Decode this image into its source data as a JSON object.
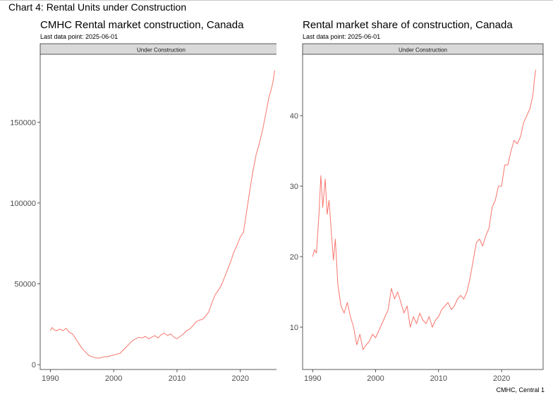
{
  "figure_title": "Chart 4: Rental Units under Construction",
  "credit": "CMHC, Central 1",
  "chart_data": [
    {
      "type": "line",
      "title": "CMHC Rental market construction, Canada",
      "subtitle": "Last data point: 2025-06-01",
      "facet_label": "Under Construction",
      "xlabel": "",
      "ylabel": "",
      "xlim": [
        1988.4,
        2026.6
      ],
      "ylim": [
        -3000,
        192000
      ],
      "xticks": [
        1990,
        2000,
        2010,
        2020
      ],
      "yticks": [
        0,
        50000,
        100000,
        150000
      ],
      "yticklabels": [
        "0",
        "50000",
        "100000",
        "150000"
      ],
      "series": [
        {
          "name": "Under Construction",
          "color": "#f8766d",
          "x": [
            1990.0,
            1990.3,
            1990.6,
            1991.0,
            1991.5,
            1992.0,
            1992.5,
            1993.0,
            1993.5,
            1994.0,
            1994.5,
            1995.0,
            1995.5,
            1996.0,
            1996.5,
            1997.0,
            1997.5,
            1998.0,
            1998.5,
            1999.0,
            1999.5,
            2000.0,
            2000.5,
            2001.0,
            2001.5,
            2002.0,
            2002.5,
            2003.0,
            2003.5,
            2004.0,
            2004.5,
            2005.0,
            2005.5,
            2006.0,
            2006.5,
            2007.0,
            2007.5,
            2008.0,
            2008.5,
            2009.0,
            2009.5,
            2010.0,
            2010.5,
            2011.0,
            2011.5,
            2012.0,
            2012.5,
            2013.0,
            2013.5,
            2014.0,
            2014.5,
            2015.0,
            2015.5,
            2016.0,
            2016.5,
            2017.0,
            2017.5,
            2018.0,
            2018.5,
            2019.0,
            2019.5,
            2020.0,
            2020.5,
            2021.0,
            2021.5,
            2022.0,
            2022.5,
            2023.0,
            2023.5,
            2024.0,
            2024.5,
            2025.0,
            2025.2,
            2025.42
          ],
          "values": [
            21000,
            23000,
            21500,
            21000,
            22000,
            21000,
            22500,
            20000,
            19000,
            16000,
            13000,
            10000,
            8000,
            6000,
            5000,
            4500,
            4000,
            4200,
            5000,
            4800,
            5500,
            6000,
            6500,
            7000,
            9000,
            11000,
            13000,
            15000,
            16000,
            17000,
            16500,
            17500,
            16000,
            17000,
            18000,
            16500,
            18500,
            19500,
            18000,
            19000,
            17000,
            16000,
            17500,
            19000,
            21000,
            22000,
            24000,
            26500,
            27500,
            28000,
            30000,
            32500,
            38000,
            43000,
            46000,
            49000,
            54000,
            59000,
            64000,
            70000,
            74000,
            79000,
            82000,
            95000,
            108000,
            120000,
            130000,
            137000,
            145000,
            155000,
            165000,
            172000,
            176000,
            182000
          ]
        }
      ]
    },
    {
      "type": "line",
      "title": "Rental market share of construction, Canada",
      "subtitle": "Last data point: 2025-06-01",
      "facet_label": "Under Construction",
      "xlabel": "",
      "ylabel": "",
      "xlim": [
        1988.4,
        2026.6
      ],
      "ylim": [
        4.0,
        48.7
      ],
      "xticks": [
        1990,
        2000,
        2010,
        2020
      ],
      "yticks": [
        10,
        20,
        30,
        40
      ],
      "yticklabels": [
        "10",
        "20",
        "30",
        "40"
      ],
      "series": [
        {
          "name": "Under Construction",
          "color": "#f8766d",
          "x": [
            1990.0,
            1990.3,
            1990.6,
            1991.0,
            1991.3,
            1991.6,
            1992.0,
            1992.3,
            1992.6,
            1993.0,
            1993.3,
            1993.6,
            1994.0,
            1994.5,
            1995.0,
            1995.5,
            1996.0,
            1996.5,
            1997.0,
            1997.5,
            1998.0,
            1998.5,
            1999.0,
            1999.5,
            2000.0,
            2000.5,
            2001.0,
            2001.5,
            2002.0,
            2002.5,
            2003.0,
            2003.5,
            2004.0,
            2004.5,
            2005.0,
            2005.5,
            2006.0,
            2006.5,
            2007.0,
            2007.5,
            2008.0,
            2008.5,
            2009.0,
            2009.5,
            2010.0,
            2010.5,
            2011.0,
            2011.5,
            2012.0,
            2012.5,
            2013.0,
            2013.5,
            2014.0,
            2014.5,
            2015.0,
            2015.5,
            2016.0,
            2016.5,
            2017.0,
            2017.5,
            2018.0,
            2018.5,
            2019.0,
            2019.5,
            2020.0,
            2020.5,
            2021.0,
            2021.5,
            2022.0,
            2022.5,
            2023.0,
            2023.5,
            2024.0,
            2024.5,
            2025.0,
            2025.2,
            2025.42
          ],
          "values": [
            20.0,
            21.0,
            20.5,
            26.0,
            31.5,
            27.0,
            31.0,
            26.0,
            28.0,
            23.0,
            19.5,
            22.5,
            16.0,
            13.0,
            12.0,
            13.5,
            11.5,
            10.0,
            7.5,
            9.0,
            6.8,
            7.5,
            8.0,
            9.0,
            8.5,
            9.5,
            10.5,
            11.5,
            12.5,
            15.5,
            14.0,
            15.0,
            13.5,
            12.0,
            13.0,
            10.0,
            11.5,
            10.5,
            12.0,
            11.0,
            10.5,
            11.5,
            10.0,
            11.0,
            11.5,
            12.5,
            13.0,
            13.5,
            12.5,
            13.0,
            14.0,
            14.5,
            14.0,
            15.0,
            17.0,
            19.5,
            22.0,
            22.5,
            21.5,
            23.0,
            24.0,
            27.0,
            28.0,
            30.0,
            30.0,
            33.0,
            33.0,
            35.0,
            36.5,
            36.0,
            37.0,
            39.0,
            40.0,
            41.0,
            43.0,
            45.0,
            46.5
          ]
        }
      ]
    }
  ]
}
